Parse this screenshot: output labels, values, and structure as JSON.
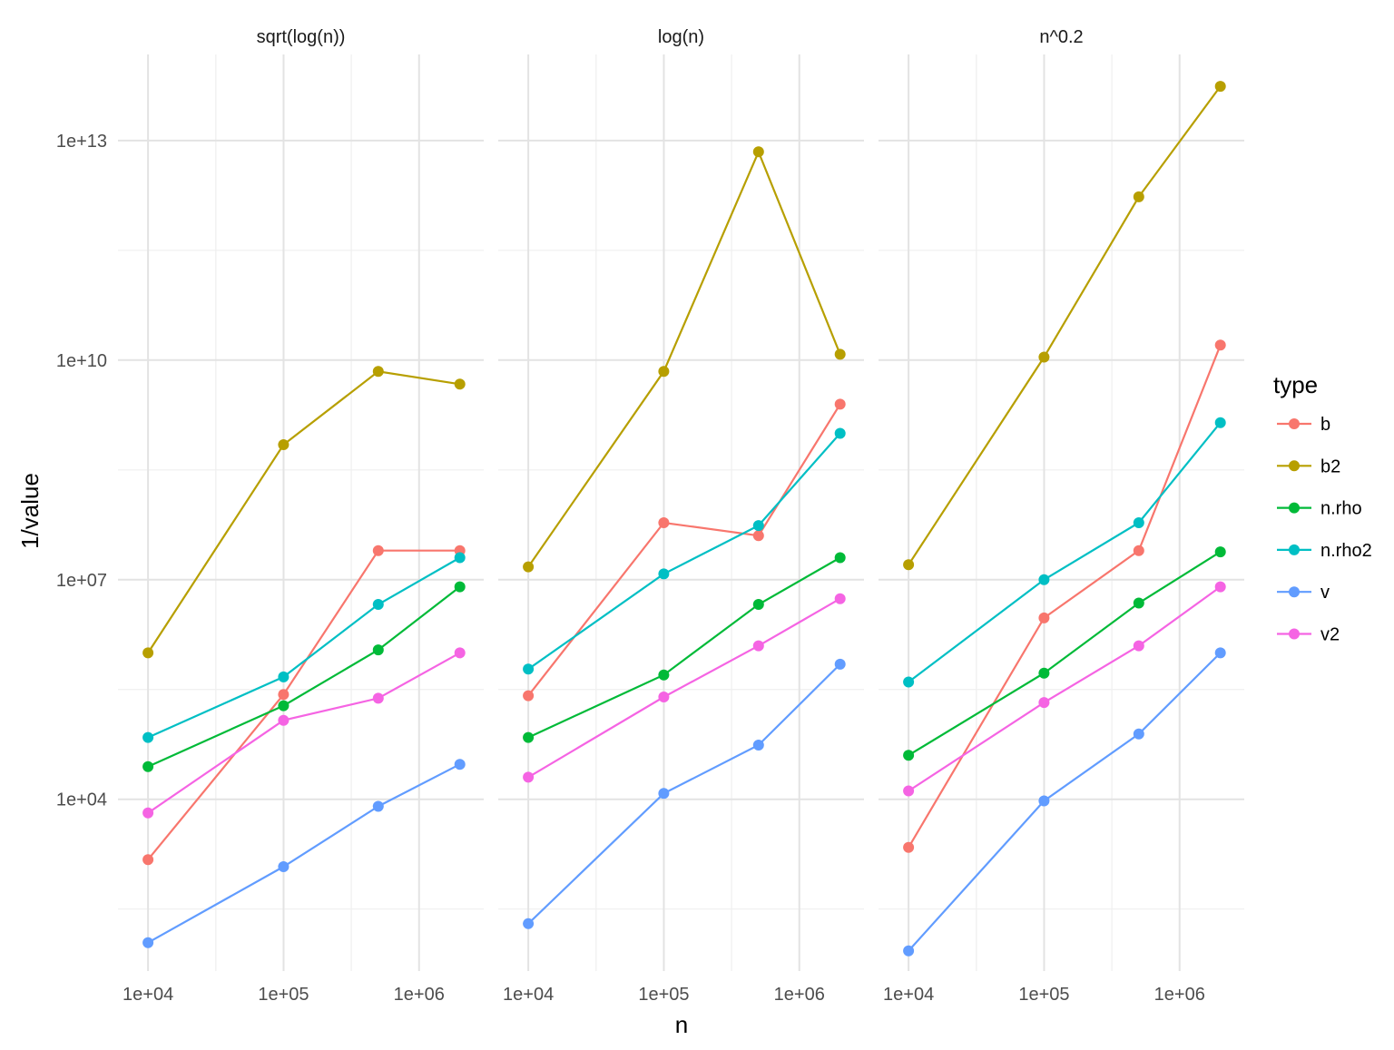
{
  "chart_data": {
    "type": "line",
    "xlabel": "n",
    "ylabel": "1/value",
    "x_scale": "log10",
    "y_scale": "log10",
    "x": [
      10000,
      100000,
      500000,
      2000000
    ],
    "x_ticks": [
      {
        "value": 10000,
        "label": "1e+04"
      },
      {
        "value": 100000,
        "label": "1e+05"
      },
      {
        "value": 1000000,
        "label": "1e+06"
      }
    ],
    "y_ticks": [
      {
        "value": 10000,
        "label": "1e+04"
      },
      {
        "value": 10000000,
        "label": "1e+07"
      },
      {
        "value": 10000000000,
        "label": "1e+10"
      },
      {
        "value": 10000000000000,
        "label": "1e+13"
      }
    ],
    "xlim": [
      6000,
      3000000
    ],
    "ylim": [
      45,
      150000000000000
    ],
    "grid": true,
    "legend": {
      "title": "type",
      "position": "right"
    },
    "colors": {
      "b": "#F8766D",
      "b2": "#B79F00",
      "n.rho": "#00BA38",
      "n.rho2": "#00BFC4",
      "v": "#619CFF",
      "v2": "#F564E3"
    },
    "panels": [
      {
        "title": "sqrt(log(n))",
        "series": [
          {
            "name": "b",
            "values": [
              1500,
              270000,
              25000000,
              25000000
            ]
          },
          {
            "name": "b2",
            "values": [
              1000000,
              700000000,
              7000000000,
              4700000000
            ]
          },
          {
            "name": "n.rho",
            "values": [
              28000,
              190000,
              1100000,
              8000000
            ]
          },
          {
            "name": "n.rho2",
            "values": [
              70000,
              470000,
              4600000,
              20000000
            ]
          },
          {
            "name": "v",
            "values": [
              110,
              1200,
              8000,
              30000
            ]
          },
          {
            "name": "v2",
            "values": [
              6500,
              120000,
              240000,
              1000000
            ]
          }
        ]
      },
      {
        "title": "log(n)",
        "series": [
          {
            "name": "b",
            "values": [
              260000,
              60000000,
              40000000,
              2500000000
            ]
          },
          {
            "name": "b2",
            "values": [
              15000000,
              7000000000,
              7000000000000,
              12000000000
            ]
          },
          {
            "name": "n.rho",
            "values": [
              70000,
              500000,
              4600000,
              20000000
            ]
          },
          {
            "name": "n.rho2",
            "values": [
              600000,
              12000000,
              55000000,
              1000000000
            ]
          },
          {
            "name": "v",
            "values": [
              200,
              12000,
              55000,
              700000
            ]
          },
          {
            "name": "v2",
            "values": [
              20000,
              250000,
              1250000,
              5500000
            ]
          }
        ]
      },
      {
        "title": "n^0.2",
        "series": [
          {
            "name": "b",
            "values": [
              2200,
              3000000,
              25000000,
              16000000000
            ]
          },
          {
            "name": "b2",
            "values": [
              16000000,
              11000000000,
              1700000000000,
              55000000000000
            ]
          },
          {
            "name": "n.rho",
            "values": [
              40000,
              530000,
              4800000,
              24000000
            ]
          },
          {
            "name": "n.rho2",
            "values": [
              400000,
              10000000,
              60000000,
              1400000000
            ]
          },
          {
            "name": "v",
            "values": [
              85,
              9500,
              78000,
              1000000
            ]
          },
          {
            "name": "v2",
            "values": [
              13000,
              210000,
              1250000,
              8000000
            ]
          }
        ]
      }
    ]
  }
}
